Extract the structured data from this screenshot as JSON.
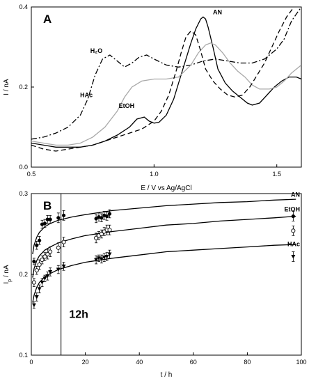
{
  "chart_data": [
    {
      "type": "line",
      "panel_label": "A",
      "xlabel": "E / V vs Ag/AgCl",
      "ylabel": "I / nA",
      "xlim": [
        0.5,
        1.6
      ],
      "ylim": [
        0.0,
        0.4
      ],
      "xticks": [
        0.5,
        1.0,
        1.5
      ],
      "xtick_labels": [
        "0.5",
        "1.0",
        "1.5"
      ],
      "yticks": [
        0.0,
        0.2,
        0.4
      ],
      "ytick_labels": [
        "0.0",
        "0.2",
        "0.4"
      ],
      "grid": false,
      "series": [
        {
          "name": "AN",
          "color": "#000000",
          "dash": "solid",
          "label_at": [
            1.24,
            0.382
          ],
          "x": [
            0.5,
            0.55,
            0.6,
            0.65,
            0.7,
            0.75,
            0.8,
            0.85,
            0.9,
            0.93,
            0.96,
            0.98,
            1.0,
            1.02,
            1.05,
            1.08,
            1.1,
            1.13,
            1.15,
            1.17,
            1.19,
            1.2,
            1.21,
            1.22,
            1.24,
            1.26,
            1.29,
            1.32,
            1.35,
            1.38,
            1.4,
            1.43,
            1.46,
            1.49,
            1.52,
            1.55,
            1.58,
            1.6
          ],
          "y": [
            0.06,
            0.055,
            0.05,
            0.05,
            0.05,
            0.055,
            0.065,
            0.08,
            0.1,
            0.12,
            0.125,
            0.115,
            0.11,
            0.112,
            0.13,
            0.17,
            0.21,
            0.27,
            0.31,
            0.345,
            0.37,
            0.375,
            0.37,
            0.35,
            0.3,
            0.245,
            0.21,
            0.19,
            0.175,
            0.16,
            0.155,
            0.16,
            0.18,
            0.2,
            0.215,
            0.225,
            0.225,
            0.22
          ]
        },
        {
          "name": "H₂O",
          "color": "#000000",
          "dash": "dashdot",
          "label_at": [
            0.79,
            0.285
          ],
          "x": [
            0.5,
            0.55,
            0.6,
            0.65,
            0.7,
            0.73,
            0.76,
            0.79,
            0.82,
            0.85,
            0.88,
            0.91,
            0.94,
            0.97,
            1.0,
            1.05,
            1.1,
            1.15,
            1.2,
            1.25,
            1.3,
            1.35,
            1.4,
            1.45,
            1.5,
            1.53,
            1.56,
            1.6
          ],
          "y": [
            0.07,
            0.075,
            0.085,
            0.1,
            0.13,
            0.17,
            0.23,
            0.27,
            0.28,
            0.265,
            0.25,
            0.26,
            0.275,
            0.28,
            0.27,
            0.255,
            0.25,
            0.255,
            0.265,
            0.27,
            0.265,
            0.26,
            0.26,
            0.27,
            0.295,
            0.32,
            0.365,
            0.4
          ]
        },
        {
          "name": "HAc",
          "color": "#a9a9a9",
          "dash": "solid",
          "label_at": [
            0.75,
            0.175
          ],
          "x": [
            0.5,
            0.55,
            0.6,
            0.65,
            0.7,
            0.75,
            0.8,
            0.85,
            0.88,
            0.91,
            0.95,
            1.0,
            1.05,
            1.1,
            1.15,
            1.18,
            1.21,
            1.23,
            1.25,
            1.28,
            1.31,
            1.34,
            1.37,
            1.4,
            1.43,
            1.47,
            1.5,
            1.53,
            1.56,
            1.6
          ],
          "y": [
            0.065,
            0.06,
            0.055,
            0.055,
            0.06,
            0.075,
            0.1,
            0.14,
            0.175,
            0.2,
            0.215,
            0.22,
            0.22,
            0.225,
            0.255,
            0.285,
            0.305,
            0.31,
            0.305,
            0.285,
            0.26,
            0.24,
            0.225,
            0.205,
            0.195,
            0.195,
            0.2,
            0.215,
            0.235,
            0.255
          ]
        },
        {
          "name": "EtOH",
          "color": "#000000",
          "dash": "dashed",
          "label_at": [
            0.92,
            0.148
          ],
          "x": [
            0.5,
            0.55,
            0.6,
            0.65,
            0.7,
            0.75,
            0.8,
            0.85,
            0.9,
            0.95,
            1.0,
            1.03,
            1.06,
            1.09,
            1.11,
            1.13,
            1.15,
            1.17,
            1.19,
            1.21,
            1.24,
            1.27,
            1.3,
            1.33,
            1.36,
            1.39,
            1.42,
            1.45,
            1.48,
            1.51,
            1.54,
            1.57
          ],
          "y": [
            0.055,
            0.045,
            0.04,
            0.045,
            0.05,
            0.055,
            0.065,
            0.075,
            0.085,
            0.095,
            0.115,
            0.14,
            0.18,
            0.24,
            0.285,
            0.325,
            0.34,
            0.33,
            0.29,
            0.245,
            0.215,
            0.195,
            0.18,
            0.175,
            0.18,
            0.2,
            0.23,
            0.26,
            0.3,
            0.34,
            0.375,
            0.4
          ]
        }
      ]
    },
    {
      "type": "scatter",
      "panel_label": "B",
      "xlabel": "t / h",
      "ylabel": "I",
      "ylabel_sub": "p",
      "ylabel_tail": " / nA",
      "xlim": [
        0,
        100
      ],
      "ylim": [
        0.1,
        0.3
      ],
      "xticks": [
        0,
        20,
        40,
        60,
        80,
        100
      ],
      "xtick_labels": [
        "0",
        "20",
        "40",
        "60",
        "80",
        "100"
      ],
      "yticks": [
        0.1,
        0.2,
        0.3
      ],
      "ytick_labels": [
        "0.1",
        "0.2",
        "0.3"
      ],
      "grid": false,
      "annotation": {
        "text": "12h",
        "x_line": 11,
        "text_at": [
          14,
          0.146
        ]
      },
      "series": [
        {
          "name": "AN",
          "marker": "none",
          "label_at": [
            100,
            0.296
          ],
          "fit": {
            "x": [
              0.5,
              1,
              2,
              3,
              5,
              7,
              10,
              15,
              20,
              30,
              40,
              50,
              60,
              70,
              80,
              90,
              98
            ],
            "y": [
              0.225,
              0.236,
              0.246,
              0.252,
              0.259,
              0.263,
              0.267,
              0.271,
              0.274,
              0.279,
              0.282,
              0.285,
              0.287,
              0.289,
              0.29,
              0.292,
              0.293
            ]
          }
        },
        {
          "name": "EtOH",
          "marker": "filled-circle",
          "label_at": [
            100,
            0.278
          ],
          "fit": {
            "x": [
              0.5,
              1,
              2,
              3,
              5,
              7,
              10,
              15,
              20,
              30,
              40,
              50,
              60,
              70,
              80,
              90,
              98
            ],
            "y": [
              0.196,
              0.207,
              0.217,
              0.223,
              0.23,
              0.234,
              0.239,
              0.244,
              0.248,
              0.253,
              0.257,
              0.261,
              0.263,
              0.266,
              0.268,
              0.27,
              0.272
            ]
          },
          "x": [
            1,
            2,
            3,
            4,
            5,
            6,
            7,
            10,
            12,
            24,
            25,
            26,
            27,
            28,
            29,
            97
          ],
          "y": [
            0.216,
            0.236,
            0.242,
            0.262,
            0.263,
            0.268,
            0.268,
            0.27,
            0.273,
            0.269,
            0.271,
            0.27,
            0.273,
            0.272,
            0.275,
            0.272
          ],
          "err": [
            0.004,
            0.005,
            0.005,
            0.005,
            0.005,
            0.005,
            0.005,
            0.006,
            0.006,
            0.005,
            0.005,
            0.005,
            0.005,
            0.005,
            0.005,
            0.006
          ]
        },
        {
          "name": "HAc",
          "marker": "open-circle",
          "label_at": [
            100,
            0.235
          ],
          "fit": null,
          "x": [
            1,
            2,
            3,
            4,
            5,
            6,
            7,
            10,
            12,
            24,
            25,
            26,
            27,
            28,
            29,
            97
          ],
          "y": [
            0.19,
            0.205,
            0.212,
            0.218,
            0.222,
            0.225,
            0.228,
            0.233,
            0.24,
            0.245,
            0.248,
            0.25,
            0.253,
            0.255,
            0.255,
            0.254
          ],
          "err": [
            0.005,
            0.005,
            0.006,
            0.005,
            0.005,
            0.006,
            0.006,
            0.006,
            0.006,
            0.006,
            0.005,
            0.005,
            0.005,
            0.006,
            0.006,
            0.006
          ]
        },
        {
          "name": "",
          "marker": "filled-triangle-down",
          "label_at": null,
          "fit": {
            "x": [
              0.5,
              1,
              2,
              3,
              5,
              7,
              10,
              15,
              20,
              30,
              40,
              50,
              60,
              70,
              80,
              90,
              98
            ],
            "y": [
              0.165,
              0.174,
              0.184,
              0.19,
              0.197,
              0.201,
              0.206,
              0.211,
              0.215,
              0.22,
              0.224,
              0.228,
              0.23,
              0.232,
              0.234,
              0.236,
              0.237
            ]
          },
          "x": [
            1,
            2,
            3,
            4,
            5,
            6,
            7,
            10,
            12,
            24,
            25,
            26,
            27,
            28,
            29,
            97
          ],
          "y": [
            0.162,
            0.172,
            0.182,
            0.19,
            0.195,
            0.198,
            0.203,
            0.206,
            0.21,
            0.218,
            0.22,
            0.219,
            0.221,
            0.222,
            0.225,
            0.222
          ],
          "err": [
            0.004,
            0.005,
            0.005,
            0.005,
            0.004,
            0.005,
            0.005,
            0.005,
            0.005,
            0.005,
            0.004,
            0.005,
            0.005,
            0.005,
            0.005,
            0.006
          ]
        }
      ]
    }
  ]
}
